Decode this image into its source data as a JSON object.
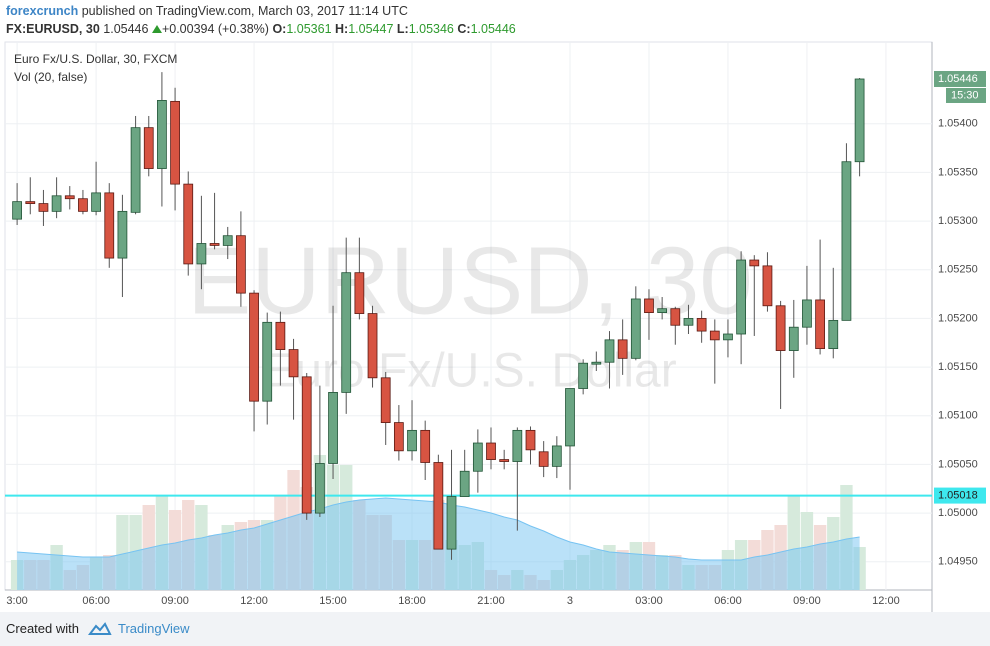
{
  "header": {
    "author": "forexcrunch",
    "published": "published on TradingView.com, March 03, 2017 11:14 UTC",
    "symbol": "FX:EURUSD, 30",
    "last": "1.05446",
    "change": "+0.00394 (+0.38%)",
    "ohlc": [
      {
        "label": "O:",
        "value": "1.05361"
      },
      {
        "label": "H:",
        "value": "1.05447"
      },
      {
        "label": "L:",
        "value": "1.05346"
      },
      {
        "label": "C:",
        "value": "1.05446"
      }
    ]
  },
  "chart_data": {
    "type": "candlestick",
    "title": "Euro Fx/U.S. Dollar, 30, FXCM",
    "volume_label": "Vol (20, false)",
    "watermark": "EURUSD, 30",
    "watermark_subtitle": "Euro Fx/U.S. Dollar",
    "up_color": "#6ba583",
    "down_color": "#d75442",
    "volume_up_color": "#d6eadc",
    "volume_down_color": "#f3dcd8",
    "ma_color": "#76c3f2",
    "hline_color": "#3ee8ee",
    "x": [
      3,
      3.5,
      4,
      4.5,
      5,
      5.5,
      6,
      6.5,
      7,
      7.5,
      8,
      8.5,
      9,
      9.5,
      10,
      10.5,
      11,
      11.5,
      12,
      12.5,
      13,
      13.5,
      14,
      14.5,
      15,
      15.5,
      16,
      16.5,
      17,
      17.5,
      18,
      18.5,
      19,
      19.5,
      20,
      20.5,
      21,
      21.5,
      22,
      22.5,
      23,
      23.5,
      24,
      24.5,
      25,
      25.5,
      26,
      26.5,
      27,
      27.5,
      28,
      28.5,
      29,
      29.5,
      30,
      30.5,
      31,
      31.5,
      32,
      32.5,
      33,
      33.5,
      34,
      34.5,
      35
    ],
    "open": [
      1.05302,
      1.0532,
      1.05318,
      1.0531,
      1.05326,
      1.05323,
      1.0531,
      1.05329,
      1.05262,
      1.05309,
      1.05396,
      1.05354,
      1.05423,
      1.05338,
      1.05256,
      1.05277,
      1.05275,
      1.05285,
      1.05226,
      1.05115,
      1.05196,
      1.05168,
      1.0514,
      1.05,
      1.05051,
      1.05124,
      1.05247,
      1.05205,
      1.05139,
      1.05093,
      1.05064,
      1.05085,
      1.05052,
      1.04963,
      1.05017,
      1.05043,
      1.05072,
      1.05055,
      1.05053,
      1.05085,
      1.05063,
      1.05048,
      1.05069,
      1.05128,
      1.05153,
      1.05155,
      1.05178,
      1.05159,
      1.0522,
      1.05206,
      1.0521,
      1.05193,
      1.052,
      1.05187,
      1.05178,
      1.05184,
      1.0526,
      1.05254,
      1.05213,
      1.05167,
      1.05191,
      1.05219,
      1.05169,
      1.05198,
      1.05361
    ],
    "high": [
      1.05339,
      1.05345,
      1.05332,
      1.05345,
      1.05336,
      1.05332,
      1.05361,
      1.05339,
      1.05327,
      1.05408,
      1.05408,
      1.05453,
      1.05437,
      1.05351,
      1.05326,
      1.05329,
      1.05294,
      1.0531,
      1.05229,
      1.05206,
      1.05207,
      1.05179,
      1.05144,
      1.05131,
      1.05213,
      1.05283,
      1.05283,
      1.05213,
      1.05145,
      1.05111,
      1.05116,
      1.05095,
      1.0506,
      1.05065,
      1.05065,
      1.05086,
      1.05088,
      1.05065,
      1.05088,
      1.05089,
      1.05074,
      1.05079,
      1.05128,
      1.05158,
      1.05166,
      1.05187,
      1.05199,
      1.05233,
      1.0523,
      1.05222,
      1.05212,
      1.05214,
      1.05208,
      1.05199,
      1.05199,
      1.05269,
      1.05265,
      1.05268,
      1.05218,
      1.05219,
      1.05254,
      1.05281,
      1.05252,
      1.0538,
      1.05447
    ],
    "low": [
      1.05296,
      1.05307,
      1.05295,
      1.05303,
      1.05312,
      1.05307,
      1.05306,
      1.05252,
      1.05222,
      1.05307,
      1.05346,
      1.05315,
      1.05311,
      1.05244,
      1.0523,
      1.05271,
      1.05261,
      1.05212,
      1.05084,
      1.05091,
      1.05131,
      1.05096,
      1.04993,
      1.04996,
      1.05035,
      1.05102,
      1.05199,
      1.05129,
      1.0507,
      1.05054,
      1.05054,
      1.05034,
      1.04963,
      1.04952,
      1.05017,
      1.05021,
      1.05045,
      1.05045,
      1.04982,
      1.0505,
      1.05037,
      1.05036,
      1.05024,
      1.05122,
      1.05146,
      1.05128,
      1.05142,
      1.05157,
      1.05178,
      1.05199,
      1.05173,
      1.05184,
      1.05175,
      1.05133,
      1.0516,
      1.05153,
      1.05182,
      1.05207,
      1.05107,
      1.05139,
      1.05173,
      1.05163,
      1.05159,
      1.05198,
      1.05346
    ],
    "close": [
      1.0532,
      1.05318,
      1.0531,
      1.05326,
      1.05323,
      1.0531,
      1.05329,
      1.05262,
      1.0531,
      1.05396,
      1.05354,
      1.05424,
      1.05338,
      1.05256,
      1.05277,
      1.05275,
      1.05285,
      1.05226,
      1.05115,
      1.05196,
      1.05168,
      1.0514,
      1.05,
      1.05051,
      1.05124,
      1.05247,
      1.05205,
      1.05139,
      1.05093,
      1.05064,
      1.05085,
      1.05052,
      1.04963,
      1.05017,
      1.05043,
      1.05072,
      1.05055,
      1.05053,
      1.05085,
      1.05065,
      1.05048,
      1.05069,
      1.05128,
      1.05154,
      1.05155,
      1.05178,
      1.05159,
      1.0522,
      1.05206,
      1.0521,
      1.05193,
      1.052,
      1.05187,
      1.05178,
      1.05184,
      1.0526,
      1.05254,
      1.05213,
      1.05167,
      1.05191,
      1.05219,
      1.05169,
      1.05198,
      1.05361,
      1.05446
    ],
    "volume": [
      30,
      30,
      30,
      45,
      20,
      25,
      33,
      35,
      75,
      75,
      85,
      95,
      80,
      90,
      85,
      55,
      65,
      68,
      70,
      70,
      95,
      120,
      103,
      135,
      125,
      125,
      90,
      75,
      75,
      50,
      50,
      50,
      90,
      50,
      45,
      48,
      20,
      15,
      20,
      15,
      10,
      20,
      30,
      35,
      40,
      45,
      40,
      48,
      48,
      35,
      35,
      25,
      25,
      25,
      40,
      50,
      50,
      60,
      65,
      95,
      78,
      65,
      73,
      105,
      43
    ],
    "volume_ma": [
      38,
      37,
      36,
      35,
      34,
      33,
      33,
      33,
      36,
      39,
      42,
      45,
      47,
      50,
      52,
      55,
      57,
      60,
      62,
      66,
      70,
      74,
      78,
      81,
      85,
      88,
      90,
      91,
      92,
      91,
      90,
      89,
      88,
      85,
      83,
      80,
      77,
      73,
      70,
      64,
      59,
      53,
      48,
      45,
      41,
      38,
      37,
      36,
      35,
      34,
      33,
      31,
      30,
      30,
      30,
      30,
      33,
      35,
      38,
      41,
      43,
      46,
      48,
      51,
      53
    ],
    "hline": 1.05018,
    "countdown": "15:30",
    "ylim": [
      1.04921,
      1.05484
    ],
    "yticks": [
      {
        "value": 1.0495,
        "label": "1.04950"
      },
      {
        "value": 1.05,
        "label": "1.05000"
      },
      {
        "value": 1.0505,
        "label": "1.05050"
      },
      {
        "value": 1.051,
        "label": "1.05100"
      },
      {
        "value": 1.0515,
        "label": "1.05150"
      },
      {
        "value": 1.052,
        "label": "1.05200"
      },
      {
        "value": 1.0525,
        "label": "1.05250"
      },
      {
        "value": 1.053,
        "label": "1.05300"
      },
      {
        "value": 1.0535,
        "label": "1.05350"
      },
      {
        "value": 1.054,
        "label": "1.05400"
      }
    ],
    "xlim": [
      2.54,
      37.75
    ],
    "xticks": [
      {
        "value": 3,
        "label": "3:00"
      },
      {
        "value": 6,
        "label": "06:00"
      },
      {
        "value": 9,
        "label": "09:00"
      },
      {
        "value": 12,
        "label": "12:00"
      },
      {
        "value": 15,
        "label": "15:00"
      },
      {
        "value": 18,
        "label": "18:00"
      },
      {
        "value": 21,
        "label": "21:00"
      },
      {
        "value": 24,
        "label": "3"
      },
      {
        "value": 27,
        "label": "03:00"
      },
      {
        "value": 30,
        "label": "06:00"
      },
      {
        "value": 33,
        "label": "09:00"
      },
      {
        "value": 36,
        "label": "12:00"
      }
    ],
    "grid": true
  },
  "footer": {
    "text": "Created with",
    "brand": "TradingView"
  }
}
